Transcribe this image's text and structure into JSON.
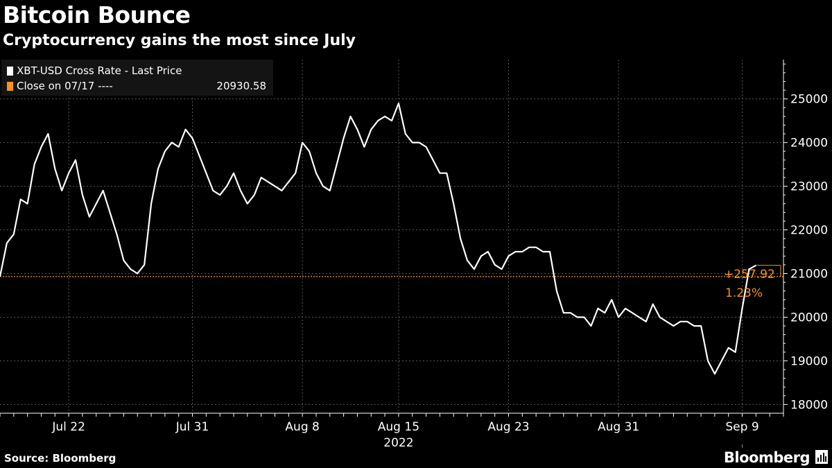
{
  "header": {
    "title": "Bitcoin Bounce",
    "subtitle": "Cryptocurrency gains the most since July"
  },
  "legend": {
    "items": [
      {
        "label": "XBT-USD Cross Rate - Last Price",
        "color": "#ffffff",
        "value": ""
      },
      {
        "label": "Close on 07/17 ----",
        "color": "#f7941d",
        "value": "20930.58"
      }
    ]
  },
  "footer": {
    "source": "Source: Bloomberg",
    "brand": "Bloomberg",
    "brand_icon": "bloomberg-terminal-icon"
  },
  "chart_data": {
    "type": "line",
    "title": "Bitcoin Bounce",
    "subtitle": "Cryptocurrency gains the most since July",
    "xlabel": "2022",
    "ylabel": "",
    "x_ticks": [
      {
        "date": "2022-07-22",
        "label": "Jul 22"
      },
      {
        "date": "2022-07-31",
        "label": "Jul 31"
      },
      {
        "date": "2022-08-08",
        "label": "Aug 8"
      },
      {
        "date": "2022-08-15",
        "label": "Aug 15"
      },
      {
        "date": "2022-08-23",
        "label": "Aug 23"
      },
      {
        "date": "2022-08-31",
        "label": "Aug 31"
      },
      {
        "date": "2022-09-09",
        "label": "Sep 9"
      }
    ],
    "year_label": "2022",
    "xlim": [
      "2022-07-17",
      "2022-09-12"
    ],
    "ylim": [
      17800,
      25900
    ],
    "y_ticks": [
      18000,
      19000,
      20000,
      21000,
      22000,
      23000,
      24000,
      25000
    ],
    "grid": true,
    "legend_position": "top-left",
    "reference_line": {
      "label": "Close on 07/17",
      "value": 20930.58,
      "color": "#f7941d"
    },
    "annotation": {
      "change": "+257.92",
      "pct": "1.23%",
      "color": "#f7941d"
    },
    "series": [
      {
        "name": "XBT-USD Cross Rate - Last Price",
        "color": "#ffffff",
        "points": [
          [
            "2022-07-17T00:00",
            20930
          ],
          [
            "2022-07-17T12:00",
            21700
          ],
          [
            "2022-07-18T00:00",
            21900
          ],
          [
            "2022-07-18T12:00",
            22700
          ],
          [
            "2022-07-19T00:00",
            22600
          ],
          [
            "2022-07-19T12:00",
            23500
          ],
          [
            "2022-07-20T00:00",
            23900
          ],
          [
            "2022-07-20T12:00",
            24200
          ],
          [
            "2022-07-21T00:00",
            23400
          ],
          [
            "2022-07-21T12:00",
            22900
          ],
          [
            "2022-07-22T00:00",
            23300
          ],
          [
            "2022-07-22T12:00",
            23600
          ],
          [
            "2022-07-23T00:00",
            22800
          ],
          [
            "2022-07-23T12:00",
            22300
          ],
          [
            "2022-07-24T00:00",
            22600
          ],
          [
            "2022-07-24T12:00",
            22900
          ],
          [
            "2022-07-25T00:00",
            22400
          ],
          [
            "2022-07-25T12:00",
            21900
          ],
          [
            "2022-07-26T00:00",
            21300
          ],
          [
            "2022-07-26T12:00",
            21100
          ],
          [
            "2022-07-27T00:00",
            21000
          ],
          [
            "2022-07-27T12:00",
            21200
          ],
          [
            "2022-07-28T00:00",
            22600
          ],
          [
            "2022-07-28T12:00",
            23400
          ],
          [
            "2022-07-29T00:00",
            23800
          ],
          [
            "2022-07-29T12:00",
            24000
          ],
          [
            "2022-07-30T00:00",
            23900
          ],
          [
            "2022-07-30T12:00",
            24300
          ],
          [
            "2022-07-31T00:00",
            24100
          ],
          [
            "2022-07-31T12:00",
            23700
          ],
          [
            "2022-08-01T00:00",
            23300
          ],
          [
            "2022-08-01T12:00",
            22900
          ],
          [
            "2022-08-02T00:00",
            22800
          ],
          [
            "2022-08-02T12:00",
            23000
          ],
          [
            "2022-08-03T00:00",
            23300
          ],
          [
            "2022-08-03T12:00",
            22900
          ],
          [
            "2022-08-04T00:00",
            22600
          ],
          [
            "2022-08-04T12:00",
            22800
          ],
          [
            "2022-08-05T00:00",
            23200
          ],
          [
            "2022-08-05T12:00",
            23100
          ],
          [
            "2022-08-06T00:00",
            23000
          ],
          [
            "2022-08-06T12:00",
            22900
          ],
          [
            "2022-08-07T00:00",
            23100
          ],
          [
            "2022-08-07T12:00",
            23300
          ],
          [
            "2022-08-08T00:00",
            24000
          ],
          [
            "2022-08-08T12:00",
            23800
          ],
          [
            "2022-08-09T00:00",
            23300
          ],
          [
            "2022-08-09T12:00",
            23000
          ],
          [
            "2022-08-10T00:00",
            22900
          ],
          [
            "2022-08-10T12:00",
            23500
          ],
          [
            "2022-08-11T00:00",
            24100
          ],
          [
            "2022-08-11T12:00",
            24600
          ],
          [
            "2022-08-12T00:00",
            24300
          ],
          [
            "2022-08-12T12:00",
            23900
          ],
          [
            "2022-08-13T00:00",
            24300
          ],
          [
            "2022-08-13T12:00",
            24500
          ],
          [
            "2022-08-14T00:00",
            24600
          ],
          [
            "2022-08-14T12:00",
            24500
          ],
          [
            "2022-08-15T00:00",
            24900
          ],
          [
            "2022-08-15T12:00",
            24200
          ],
          [
            "2022-08-16T00:00",
            24000
          ],
          [
            "2022-08-16T12:00",
            24000
          ],
          [
            "2022-08-17T00:00",
            23900
          ],
          [
            "2022-08-17T12:00",
            23600
          ],
          [
            "2022-08-18T00:00",
            23300
          ],
          [
            "2022-08-18T12:00",
            23300
          ],
          [
            "2022-08-19T00:00",
            22600
          ],
          [
            "2022-08-19T12:00",
            21800
          ],
          [
            "2022-08-20T00:00",
            21300
          ],
          [
            "2022-08-20T12:00",
            21100
          ],
          [
            "2022-08-21T00:00",
            21400
          ],
          [
            "2022-08-21T12:00",
            21500
          ],
          [
            "2022-08-22T00:00",
            21200
          ],
          [
            "2022-08-22T12:00",
            21100
          ],
          [
            "2022-08-23T00:00",
            21400
          ],
          [
            "2022-08-23T12:00",
            21500
          ],
          [
            "2022-08-24T00:00",
            21500
          ],
          [
            "2022-08-24T12:00",
            21600
          ],
          [
            "2022-08-25T00:00",
            21600
          ],
          [
            "2022-08-25T12:00",
            21500
          ],
          [
            "2022-08-26T00:00",
            21500
          ],
          [
            "2022-08-26T12:00",
            20600
          ],
          [
            "2022-08-27T00:00",
            20100
          ],
          [
            "2022-08-27T12:00",
            20100
          ],
          [
            "2022-08-28T00:00",
            20000
          ],
          [
            "2022-08-28T12:00",
            20000
          ],
          [
            "2022-08-29T00:00",
            19800
          ],
          [
            "2022-08-29T12:00",
            20200
          ],
          [
            "2022-08-30T00:00",
            20100
          ],
          [
            "2022-08-30T12:00",
            20400
          ],
          [
            "2022-08-31T00:00",
            20000
          ],
          [
            "2022-08-31T12:00",
            20200
          ],
          [
            "2022-09-01T00:00",
            20100
          ],
          [
            "2022-09-01T12:00",
            20000
          ],
          [
            "2022-09-02T00:00",
            19900
          ],
          [
            "2022-09-02T12:00",
            20300
          ],
          [
            "2022-09-03T00:00",
            20000
          ],
          [
            "2022-09-03T12:00",
            19900
          ],
          [
            "2022-09-04T00:00",
            19800
          ],
          [
            "2022-09-04T12:00",
            19900
          ],
          [
            "2022-09-05T00:00",
            19900
          ],
          [
            "2022-09-05T12:00",
            19800
          ],
          [
            "2022-09-06T00:00",
            19800
          ],
          [
            "2022-09-06T12:00",
            19000
          ],
          [
            "2022-09-07T00:00",
            18700
          ],
          [
            "2022-09-07T12:00",
            19000
          ],
          [
            "2022-09-08T00:00",
            19300
          ],
          [
            "2022-09-08T12:00",
            19200
          ],
          [
            "2022-09-09T00:00",
            20200
          ],
          [
            "2022-09-09T12:00",
            21100
          ],
          [
            "2022-09-10T00:00",
            21188
          ]
        ]
      }
    ]
  }
}
